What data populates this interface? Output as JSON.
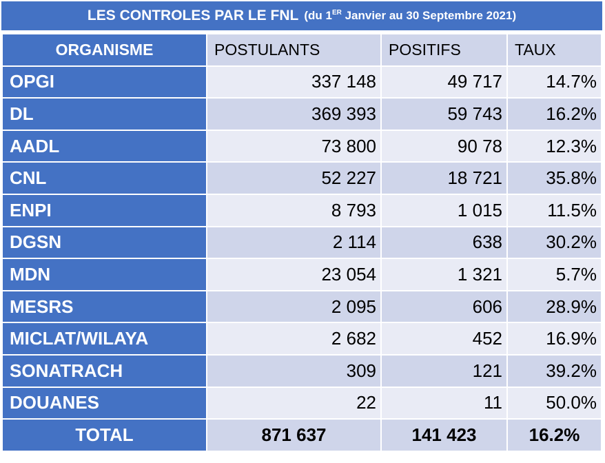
{
  "title": {
    "main": "LES CONTROLES PAR LE FNL",
    "sub_prefix": "(du 1",
    "sub_sup": "ER",
    "sub_suffix": " Janvier au 30 Septembre 2021)"
  },
  "colors": {
    "header_blue": "#4472c4",
    "row_light": "#e9ebf5",
    "row_mid": "#cfd5ea"
  },
  "table": {
    "headers": [
      "ORGANISME",
      "POSTULANTS",
      "POSITIFS",
      "TAUX"
    ],
    "rows": [
      [
        "OPGI",
        "337 148",
        "49 717",
        "14.7%"
      ],
      [
        "DL",
        "369 393",
        "59 743",
        "16.2%"
      ],
      [
        "AADL",
        "73 800",
        "90 78",
        "12.3%"
      ],
      [
        "CNL",
        "52 227",
        "18 721",
        "35.8%"
      ],
      [
        "ENPI",
        "8 793",
        "1 015",
        "11.5%"
      ],
      [
        "DGSN",
        "2 114",
        "638",
        "30.2%"
      ],
      [
        "MDN",
        "23 054",
        "1 321",
        "5.7%"
      ],
      [
        "MESRS",
        "2 095",
        "606",
        "28.9%"
      ],
      [
        "MICLAT/WILAYA",
        "2 682",
        "452",
        "16.9%"
      ],
      [
        "SONATRACH",
        "309",
        "121",
        "39.2%"
      ],
      [
        "DOUANES",
        "22",
        "11",
        "50.0%"
      ]
    ],
    "total": [
      "TOTAL",
      "871 637",
      "141 423",
      "16.2%"
    ]
  }
}
